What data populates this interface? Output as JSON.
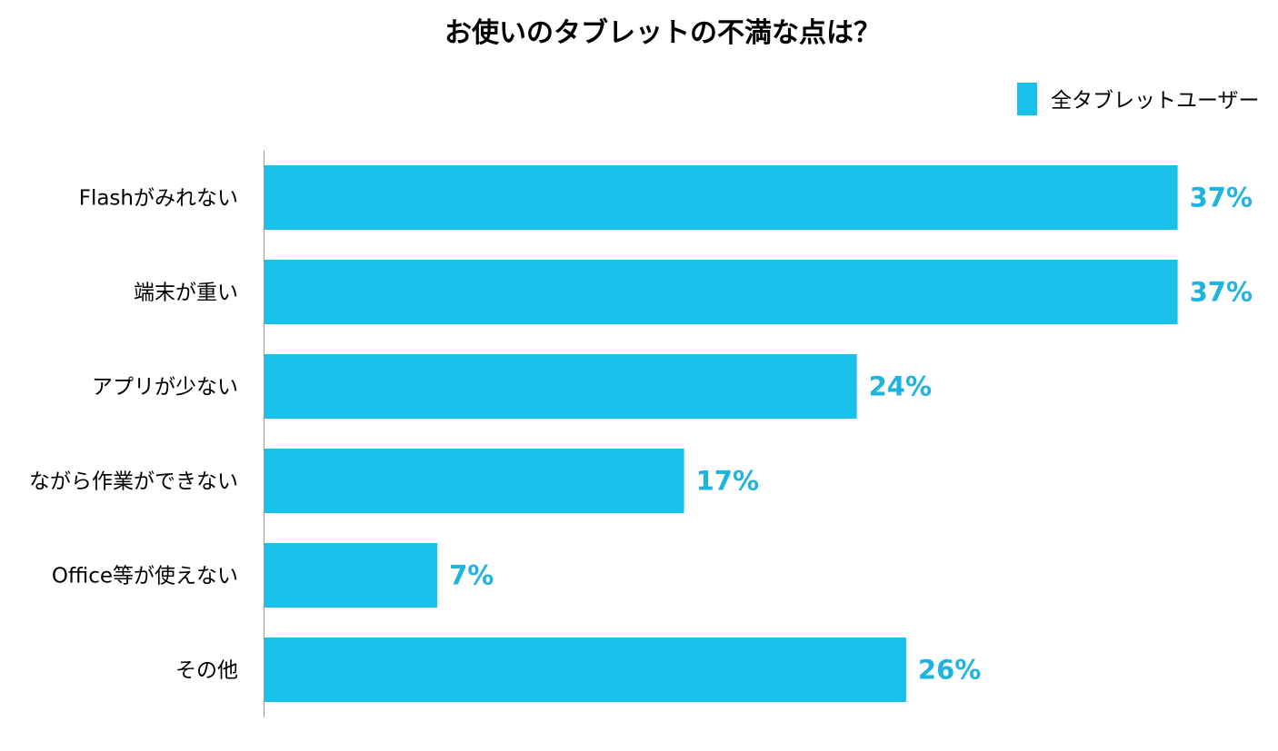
{
  "chart_data": {
    "type": "bar",
    "orientation": "horizontal",
    "title": "お使いのタブレットの不満な点は？",
    "categories": [
      "Flashがみれない",
      "端末が重い",
      "アプリが少ない",
      "ながら作業ができない",
      "Office等が使えない",
      "その他"
    ],
    "series": [
      {
        "name": "全タブレットユーザー",
        "values": [
          37,
          37,
          24,
          17,
          7,
          26
        ],
        "color": "#18c0ea"
      }
    ],
    "value_labels": [
      "37%",
      "37%",
      "24%",
      "17%",
      "7%",
      "26%"
    ],
    "value_label_color": "#1fb4e0",
    "legend_position": "top-right",
    "grid": false
  }
}
